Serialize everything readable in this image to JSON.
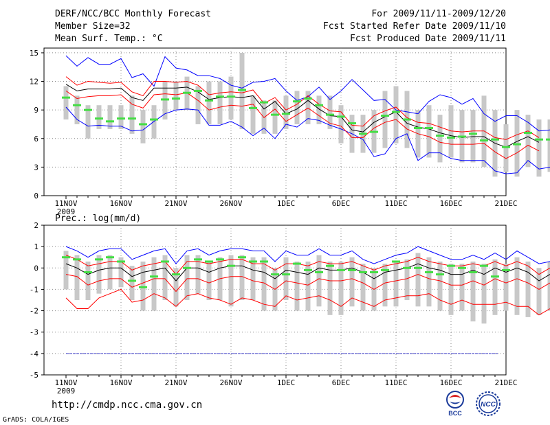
{
  "header": {
    "title": "DERF/NCC/BCC Monthly Forecast",
    "member_size": "Member Size=32",
    "variable": "Mean Surf. Temp.: °C",
    "period": "For 2009/11/11-2009/12/20",
    "started": "Fcst Started Refer Date 2009/11/10",
    "produced": "Fcst Produced Date 2009/11/11"
  },
  "footer": {
    "url": "http://cmdp.ncc.cma.gov.cn",
    "credit": "GrADS: COLA/IGES",
    "logos": [
      "BCC",
      "NCC"
    ]
  },
  "colors": {
    "envelope": "#0000ff",
    "spread": "#ff0000",
    "mean": "#000000",
    "obs": "#44dd44",
    "box": "#c8c8c8",
    "floor": "#4444cc"
  },
  "chart_data": [
    {
      "type": "line",
      "title": "Mean Surf. Temp.: °C",
      "xlabel": "",
      "ylabel": "°C",
      "ylim": [
        0,
        15.5
      ],
      "yticks": [
        "0",
        "3",
        "6",
        "9",
        "12",
        "15"
      ],
      "xtick_labels": [
        "11NOV",
        "16NOV",
        "21NOV",
        "26NOV",
        "1DEC",
        "6DEC",
        "11DEC",
        "16DEC",
        "21DEC"
      ],
      "xtick_year": "2009",
      "series": [
        {
          "name": "max",
          "values": [
            14.7,
            13.6,
            14.5,
            13.8,
            13.8,
            14.4,
            12.4,
            12.8,
            11.5,
            14.6,
            13.4,
            13.2,
            12.6,
            12.6,
            12.3,
            11.6,
            11.3,
            11.9,
            12.0,
            12.3,
            11.0,
            10.0,
            10.4,
            11.4,
            10.1,
            11.0,
            12.2,
            11.1,
            10.0,
            10.1,
            9.0,
            8.8,
            8.6,
            9.9,
            10.6,
            10.3,
            9.6,
            10.2,
            8.6,
            7.8,
            8.4,
            8.4,
            7.7,
            6.8,
            6.9,
            7.7,
            7.3,
            8.3,
            7.7,
            7.3
          ]
        },
        {
          "name": "upper",
          "values": [
            12.5,
            11.6,
            12.0,
            11.9,
            11.8,
            11.9,
            10.9,
            10.5,
            12.0,
            12.0,
            11.9,
            12.0,
            11.6,
            10.6,
            10.8,
            10.9,
            10.8,
            11.1,
            9.7,
            10.3,
            9.0,
            9.6,
            10.5,
            9.6,
            8.9,
            8.8,
            7.4,
            7.3,
            8.4,
            8.9,
            9.3,
            8.2,
            7.7,
            7.6,
            7.2,
            6.8,
            6.7,
            6.8,
            6.8,
            6.1,
            5.9,
            6.4,
            6.8,
            6.1
          ]
        },
        {
          "name": "mean",
          "values": [
            11.7,
            11.0,
            11.2,
            11.2,
            11.2,
            11.3,
            10.3,
            10.0,
            11.3,
            11.3,
            11.3,
            11.4,
            10.9,
            10.1,
            10.3,
            10.4,
            10.3,
            10.5,
            9.1,
            9.9,
            8.6,
            9.1,
            10.0,
            9.1,
            8.4,
            8.3,
            6.9,
            6.7,
            7.7,
            8.3,
            8.8,
            7.6,
            7.2,
            7.0,
            6.6,
            6.3,
            6.1,
            6.2,
            6.2,
            5.5,
            5.1,
            5.7,
            6.2,
            5.6
          ]
        },
        {
          "name": "lower",
          "values": [
            11.0,
            10.2,
            10.4,
            10.5,
            10.5,
            10.6,
            9.6,
            9.2,
            10.6,
            10.7,
            10.6,
            10.8,
            10.0,
            9.0,
            9.3,
            9.5,
            9.4,
            9.6,
            8.2,
            9.1,
            7.8,
            8.5,
            9.2,
            8.4,
            7.6,
            7.3,
            6.1,
            6.1,
            7.1,
            7.7,
            8.0,
            7.0,
            6.5,
            6.2,
            5.6,
            5.4,
            5.4,
            5.4,
            5.5,
            4.6,
            3.9,
            4.5,
            5.3,
            4.7
          ]
        },
        {
          "name": "min",
          "values": [
            9.3,
            8.0,
            7.3,
            7.4,
            7.3,
            7.3,
            6.8,
            6.9,
            7.8,
            8.6,
            9.0,
            9.1,
            9.0,
            7.4,
            7.4,
            7.8,
            7.2,
            6.3,
            7.1,
            6.0,
            7.5,
            7.2,
            8.1,
            7.9,
            7.4,
            7.0,
            6.5,
            5.9,
            4.1,
            4.4,
            6.0,
            6.5,
            3.7,
            4.5,
            4.5,
            3.9,
            3.7,
            3.7,
            3.7,
            2.6,
            2.3,
            2.4,
            3.7,
            2.8,
            3.0
          ]
        },
        {
          "name": "observed",
          "values": [
            10.3,
            9.5,
            9.0,
            8.1,
            7.8,
            8.1,
            8.1,
            7.5,
            8.0,
            10.1,
            10.2,
            10.8,
            11.0,
            10.0,
            10.4,
            10.4,
            11.1,
            9.2,
            9.8,
            8.5,
            8.6,
            9.9,
            10.2,
            9.5,
            8.5,
            8.3,
            7.6,
            6.5,
            6.7,
            8.4,
            8.8,
            8.0,
            7.1,
            7.1,
            6.3,
            6.1,
            6.2,
            6.5,
            5.8,
            5.9,
            5.1,
            5.4,
            6.6,
            5.9,
            5.9
          ]
        },
        {
          "name": "box_high",
          "values": [
            11.5,
            10.5,
            9.5,
            9.5,
            9.5,
            9.5,
            10.5,
            9.0,
            9.5,
            12.0,
            12.0,
            12.5,
            11.5,
            12.0,
            12.0,
            12.5,
            15.0,
            10.5,
            10.0,
            10.0,
            10.5,
            11.0,
            11.0,
            10.5,
            10.5,
            9.5,
            8.5,
            8.5,
            9.0,
            11.0,
            11.5,
            11.0,
            9.0,
            9.5,
            8.5,
            9.5,
            9.0,
            9.0,
            10.5,
            9.0,
            7.5,
            9.0,
            8.5,
            8.0,
            8.0
          ]
        },
        {
          "name": "box_low",
          "values": [
            8.0,
            7.5,
            6.0,
            7.0,
            7.0,
            7.0,
            6.5,
            5.5,
            6.0,
            8.0,
            9.0,
            9.0,
            7.5,
            7.5,
            7.5,
            8.0,
            7.0,
            6.5,
            6.5,
            6.5,
            7.0,
            7.5,
            7.5,
            7.5,
            7.0,
            5.5,
            4.5,
            4.5,
            4.5,
            5.0,
            5.5,
            5.0,
            4.0,
            4.0,
            3.5,
            4.0,
            3.5,
            3.5,
            3.0,
            2.0,
            2.5,
            2.0,
            3.0,
            2.0,
            2.5
          ]
        }
      ]
    },
    {
      "type": "line",
      "title": "Prec.: log(mm/d)",
      "xlabel": "",
      "ylabel": "log(mm/d)",
      "ylim": [
        -5,
        2
      ],
      "yticks": [
        "-5",
        "-4",
        "-3",
        "-2",
        "-1",
        "0",
        "1",
        "2"
      ],
      "xtick_labels": [
        "11NOV",
        "16NOV",
        "21NOV",
        "26NOV",
        "1DEC",
        "6DEC",
        "11DEC",
        "16DEC",
        "21DEC"
      ],
      "xtick_year": "2009",
      "series": [
        {
          "name": "max",
          "values": [
            1.0,
            0.8,
            0.5,
            0.8,
            0.9,
            0.9,
            0.4,
            0.6,
            0.8,
            0.9,
            0.2,
            0.8,
            0.9,
            0.6,
            0.8,
            0.9,
            0.9,
            0.8,
            0.8,
            0.3,
            0.8,
            0.6,
            0.6,
            0.9,
            0.6,
            0.6,
            0.8,
            0.4,
            0.2,
            0.4,
            0.6,
            0.7,
            1.0,
            0.8,
            0.6,
            0.4,
            0.4,
            0.6,
            0.4,
            0.7,
            0.4,
            0.8,
            0.5,
            0.2,
            0.3
          ]
        },
        {
          "name": "upper",
          "values": [
            0.6,
            0.4,
            0.1,
            0.2,
            0.3,
            0.3,
            -0.1,
            0.1,
            0.2,
            0.3,
            -0.3,
            0.3,
            0.3,
            0.2,
            0.3,
            0.4,
            0.4,
            0.2,
            0.2,
            -0.1,
            0.2,
            0.2,
            0.1,
            0.3,
            0.2,
            0.2,
            0.3,
            0.1,
            -0.1,
            0.1,
            0.2,
            0.3,
            0.5,
            0.3,
            0.2,
            0.1,
            0.1,
            0.2,
            0.1,
            0.3,
            0.1,
            0.3,
            0.1,
            -0.3,
            0.0
          ]
        },
        {
          "name": "mean",
          "values": [
            0.2,
            0.0,
            -0.3,
            -0.1,
            0.0,
            0.0,
            -0.4,
            -0.2,
            -0.1,
            0.0,
            -0.6,
            0.0,
            0.0,
            -0.2,
            0.0,
            0.1,
            0.1,
            -0.1,
            -0.2,
            -0.5,
            -0.1,
            -0.2,
            -0.3,
            0.0,
            -0.1,
            -0.1,
            0.0,
            -0.2,
            -0.5,
            -0.2,
            -0.1,
            0.0,
            0.2,
            0.0,
            -0.1,
            -0.3,
            -0.3,
            -0.1,
            -0.3,
            0.0,
            -0.2,
            0.0,
            -0.2,
            -0.6,
            -0.3
          ]
        },
        {
          "name": "lower",
          "values": [
            -0.3,
            -0.4,
            -0.8,
            -0.6,
            -0.5,
            -0.5,
            -0.9,
            -0.7,
            -0.5,
            -0.5,
            -1.1,
            -0.5,
            -0.5,
            -0.7,
            -0.5,
            -0.4,
            -0.4,
            -0.6,
            -0.7,
            -1.0,
            -0.6,
            -0.7,
            -0.8,
            -0.5,
            -0.6,
            -0.6,
            -0.5,
            -0.7,
            -1.0,
            -0.7,
            -0.6,
            -0.5,
            -0.3,
            -0.5,
            -0.6,
            -0.8,
            -0.8,
            -0.6,
            -0.8,
            -0.5,
            -0.7,
            -0.5,
            -0.7,
            -1.0,
            -0.7
          ]
        },
        {
          "name": "min",
          "values": [
            -1.4,
            -1.9,
            -1.9,
            -1.4,
            -1.2,
            -1.0,
            -1.6,
            -1.5,
            -1.2,
            -1.4,
            -1.8,
            -1.3,
            -1.2,
            -1.4,
            -1.5,
            -1.7,
            -1.4,
            -1.5,
            -1.7,
            -1.8,
            -1.3,
            -1.5,
            -1.4,
            -1.3,
            -1.5,
            -1.8,
            -1.4,
            -1.6,
            -1.8,
            -1.5,
            -1.4,
            -1.3,
            -1.3,
            -1.2,
            -1.5,
            -1.7,
            -1.5,
            -1.7,
            -1.7,
            -1.7,
            -1.6,
            -1.8,
            -1.8,
            -2.2,
            -1.9
          ]
        },
        {
          "name": "observed",
          "values": [
            0.5,
            0.4,
            -0.2,
            0.4,
            0.5,
            0.3,
            -0.6,
            -0.9,
            -0.4,
            0.3,
            -0.3,
            0.0,
            0.4,
            0.3,
            0.4,
            0.1,
            0.5,
            0.3,
            0.3,
            -0.3,
            -0.3,
            0.2,
            -0.1,
            -0.2,
            0.1,
            -0.1,
            -0.1,
            -0.2,
            -0.2,
            -0.1,
            0.3,
            0.0,
            0.0,
            -0.2,
            -0.3,
            0.1,
            0.0,
            -0.2,
            0.1,
            -0.4,
            -0.1
          ]
        },
        {
          "name": "box_high",
          "values": [
            0.8,
            0.6,
            0.3,
            0.6,
            0.6,
            0.5,
            0.1,
            0.3,
            0.5,
            0.6,
            0.0,
            0.6,
            0.6,
            0.3,
            0.5,
            0.6,
            0.6,
            0.5,
            0.5,
            0.0,
            0.5,
            0.3,
            0.3,
            0.6,
            0.3,
            0.3,
            0.5,
            0.2,
            0.0,
            0.2,
            0.3,
            0.4,
            0.7,
            0.5,
            0.3,
            0.2,
            0.2,
            0.3,
            0.2,
            0.4,
            0.2,
            0.5,
            0.3,
            0.0,
            0.3
          ]
        },
        {
          "name": "box_low",
          "values": [
            -1.0,
            -1.5,
            -1.5,
            -1.2,
            -1.0,
            -0.9,
            -1.5,
            -2.0,
            -2.0,
            -1.5,
            -1.8,
            -1.5,
            -1.2,
            -1.5,
            -1.5,
            -1.8,
            -1.5,
            -1.5,
            -2.0,
            -2.0,
            -1.5,
            -2.0,
            -2.0,
            -1.8,
            -2.2,
            -2.2,
            -1.8,
            -2.0,
            -2.0,
            -1.8,
            -1.8,
            -1.5,
            -1.8,
            -1.8,
            -2.0,
            -2.2,
            -2.0,
            -2.5,
            -2.6,
            -2.2,
            -2.0,
            -2.2,
            -2.3,
            -2.2,
            -2.0
          ]
        },
        {
          "name": "floor",
          "values": [
            -4,
            -4
          ]
        }
      ]
    }
  ]
}
